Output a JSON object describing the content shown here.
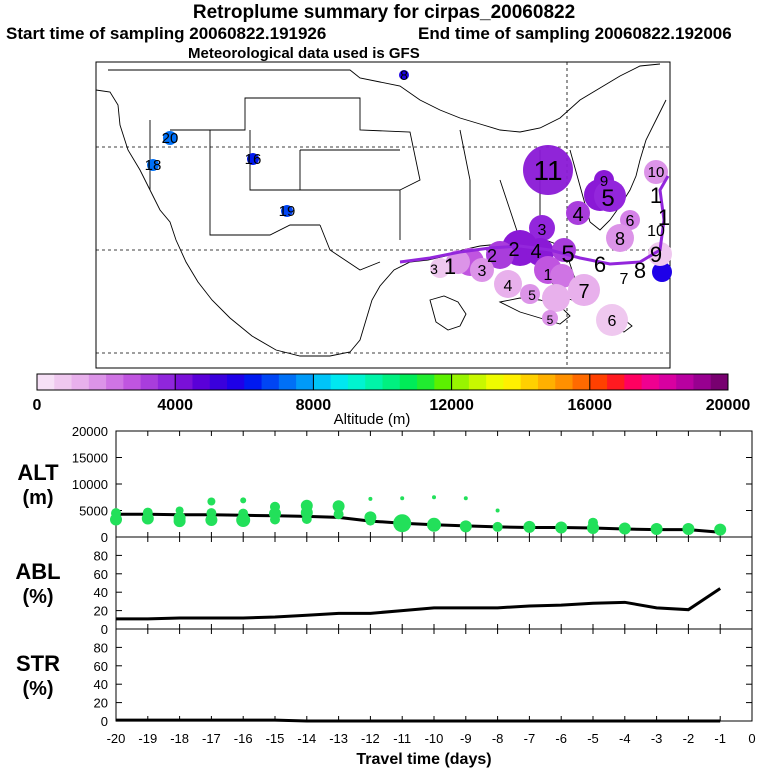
{
  "title": "Retroplume summary for cirpas_20060822",
  "start_time": "Start time of sampling 20060822.191926",
  "end_time": "End time of sampling 20060822.192006",
  "met_note": "Meteorological data used is GFS",
  "map": {
    "labels_blue": [
      "8",
      "20",
      "18",
      "16",
      "19"
    ],
    "labels_plume": [
      "11",
      "10",
      "9",
      "5",
      "4",
      "6",
      "3",
      "1",
      "8",
      "2",
      "1",
      "3",
      "2",
      "4",
      "5",
      "6",
      "7",
      "8",
      "9",
      "1",
      "3",
      "4",
      "5",
      "7",
      "6",
      "5",
      "1",
      "10"
    ]
  },
  "colorbar": {
    "ticks": [
      "0",
      "4000",
      "8000",
      "12000",
      "16000",
      "20000"
    ],
    "label": "Altitude (m)",
    "colors": [
      "#f6e0f6",
      "#efc8ef",
      "#e8b0ec",
      "#dc94e8",
      "#cf74e4",
      "#c055e0",
      "#a93ddc",
      "#9026dc",
      "#7a10d8",
      "#5a00d8",
      "#3a00dc",
      "#1e00e8",
      "#0019f0",
      "#0045f4",
      "#0070f6",
      "#009af8",
      "#00c4f8",
      "#00e8f0",
      "#00f4d0",
      "#00f4a8",
      "#00f080",
      "#00ec58",
      "#20ec30",
      "#5cf000",
      "#98f400",
      "#c8f800",
      "#eefc00",
      "#fff000",
      "#ffd000",
      "#ffb000",
      "#ff9000",
      "#ff6a00",
      "#ff4000",
      "#ff1a20",
      "#ff0060",
      "#f00090",
      "#d800a0",
      "#b800a0",
      "#980090",
      "#780070"
    ]
  },
  "chart_data": [
    {
      "type": "scatter",
      "name": "ALT",
      "ylabel": "ALT (m)",
      "ylabel_line1": "ALT",
      "ylabel_line2": "(m)",
      "ylim": [
        0,
        20000
      ],
      "yticks": [
        "0",
        "5000",
        "10000",
        "15000",
        "20000"
      ],
      "series": [
        {
          "name": "median altitude",
          "kind": "line",
          "x": [
            -20,
            -19,
            -18,
            -17,
            -16,
            -15,
            -14,
            -13,
            -12,
            -11,
            -10,
            -9,
            -8,
            -7,
            -6,
            -5,
            -4,
            -3,
            -2,
            -1
          ],
          "values": [
            4300,
            4300,
            4200,
            4200,
            4100,
            4000,
            3900,
            3700,
            3000,
            2600,
            2300,
            2100,
            1900,
            1800,
            1800,
            1700,
            1500,
            1400,
            1400,
            900
          ]
        },
        {
          "name": "altitude spread",
          "kind": "points",
          "x": [
            -20,
            -20,
            -19,
            -19,
            -18,
            -18,
            -18,
            -17,
            -17,
            -17,
            -16,
            -16,
            -16,
            -15,
            -15,
            -15,
            -14,
            -14,
            -14,
            -13,
            -13,
            -12,
            -12,
            -12,
            -11,
            -11,
            -10,
            -10,
            -9,
            -9,
            -8,
            -8,
            -7,
            -6,
            -5,
            -5,
            -4,
            -3,
            -2,
            -1
          ],
          "values": [
            4500,
            3300,
            4600,
            3500,
            5000,
            3600,
            3000,
            6700,
            4500,
            3200,
            6900,
            4400,
            3200,
            5700,
            4400,
            3300,
            5900,
            4600,
            3400,
            5800,
            4300,
            7200,
            3700,
            3100,
            7300,
            2600,
            7500,
            2300,
            7300,
            2000,
            5000,
            1900,
            1900,
            1800,
            2700,
            1700,
            1600,
            1500,
            1500,
            1400
          ],
          "sizes": [
            5,
            6,
            5,
            6,
            4,
            6,
            6,
            4,
            5,
            6,
            3,
            5,
            7,
            5,
            6,
            5,
            6,
            6,
            5,
            6,
            5,
            2,
            6,
            5,
            2,
            9,
            2,
            7,
            2,
            6,
            2,
            5,
            6,
            6,
            5,
            6,
            6,
            6,
            6,
            6
          ]
        }
      ]
    },
    {
      "type": "line",
      "name": "ABL",
      "ylabel": "ABL (%)",
      "ylabel_line1": "ABL",
      "ylabel_line2": "(%)",
      "ylim": [
        0,
        100
      ],
      "yticks": [
        "0",
        "20",
        "40",
        "60",
        "80"
      ],
      "series": [
        {
          "name": "ABL fraction",
          "x": [
            -20,
            -19,
            -18,
            -17,
            -16,
            -15,
            -14,
            -13,
            -12,
            -11,
            -10,
            -9,
            -8,
            -7,
            -6,
            -5,
            -4,
            -3,
            -2,
            -1
          ],
          "values": [
            11,
            11,
            12,
            12,
            12,
            13,
            15,
            17,
            17,
            20,
            23,
            23,
            23,
            25,
            26,
            28,
            29,
            23,
            21,
            44
          ]
        }
      ]
    },
    {
      "type": "line",
      "name": "STR",
      "ylabel": "STR (%)",
      "ylabel_line1": "STR",
      "ylabel_line2": "(%)",
      "ylim": [
        0,
        100
      ],
      "yticks": [
        "0",
        "20",
        "40",
        "60",
        "80"
      ],
      "xlabel": "Travel time (days)",
      "xticks": [
        "-20",
        "-19",
        "-18",
        "-17",
        "-16",
        "-15",
        "-14",
        "-13",
        "-12",
        "-11",
        "-10",
        "-9",
        "-8",
        "-7",
        "-6",
        "-5",
        "-4",
        "-3",
        "-2",
        "-1",
        "0"
      ],
      "series": [
        {
          "name": "stratospheric fraction",
          "x": [
            -20,
            -19,
            -18,
            -17,
            -16,
            -15,
            -14,
            -13,
            -12,
            -11,
            -10,
            -9,
            -8,
            -7,
            -6,
            -5,
            -4,
            -3,
            -2,
            -1
          ],
          "values": [
            1,
            1,
            1,
            1,
            1,
            1,
            0,
            0,
            0,
            0,
            0,
            0,
            0,
            0,
            0,
            0,
            0,
            0,
            0,
            0
          ]
        }
      ]
    }
  ]
}
